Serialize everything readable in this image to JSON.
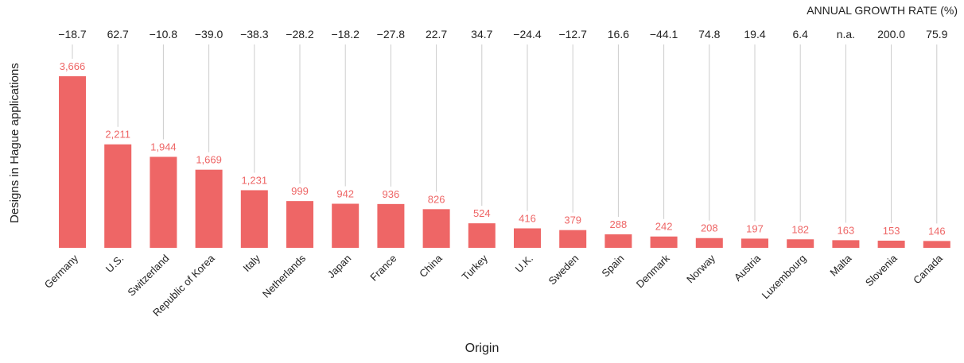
{
  "chart_data": {
    "type": "bar",
    "title": "",
    "xlabel": "Origin",
    "ylabel": "Designs in Hague applications",
    "growth_header": "ANNUAL GROWTH RATE (%)",
    "categories": [
      "Germany",
      "U.S.",
      "Switzerland",
      "Republic of Korea",
      "Italy",
      "Netherlands",
      "Japan",
      "France",
      "China",
      "Turkey",
      "U.K.",
      "Sweden",
      "Spain",
      "Denmark",
      "Norway",
      "Austria",
      "Luxembourg",
      "Malta",
      "Slovenia",
      "Canada"
    ],
    "values": [
      3666,
      2211,
      1944,
      1669,
      1231,
      999,
      942,
      936,
      826,
      524,
      416,
      379,
      288,
      242,
      208,
      197,
      182,
      163,
      153,
      146
    ],
    "value_labels": [
      "3,666",
      "2,211",
      "1,944",
      "1,669",
      "1,231",
      "999",
      "942",
      "936",
      "826",
      "524",
      "416",
      "379",
      "288",
      "242",
      "208",
      "197",
      "182",
      "163",
      "153",
      "146"
    ],
    "growth_rates": [
      "−18.7",
      "62.7",
      "−10.8",
      "−39.0",
      "−38.3",
      "−28.2",
      "−18.2",
      "−27.8",
      "22.7",
      "34.7",
      "−24.4",
      "−12.7",
      "16.6",
      "−44.1",
      "74.8",
      "19.4",
      "6.4",
      "n.a.",
      "200.0",
      "75.9"
    ],
    "ylim": [
      0,
      3666
    ],
    "grid": false,
    "bar_color": "#ee6666",
    "value_label_color": "#ee6666",
    "connector_color": "#cccccc"
  }
}
